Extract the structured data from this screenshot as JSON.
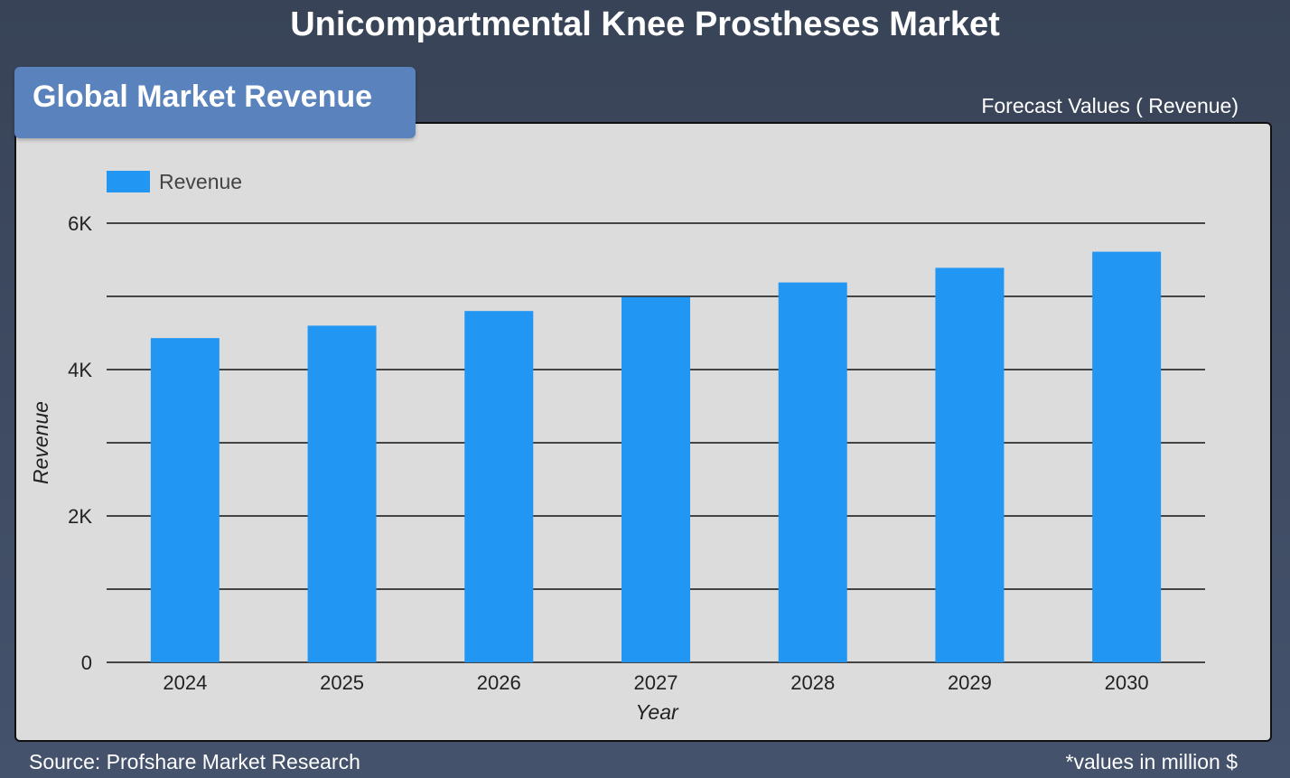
{
  "header": {
    "title": "Unicompartmental Knee Prostheses Market"
  },
  "badge": {
    "label": "Global Market Revenue"
  },
  "subtitle_right": "Forecast Values ( Revenue)",
  "footer": {
    "source": "Source: Profshare Market Research",
    "units_note": "*values in million $"
  },
  "colors": {
    "bar": "#2196f3",
    "panel": "#dcdcdc",
    "background": "#3d4a61",
    "badge": "#5a82bc"
  },
  "chart_data": {
    "type": "bar",
    "categories": [
      "2024",
      "2025",
      "2026",
      "2027",
      "2028",
      "2029",
      "2030"
    ],
    "series": [
      {
        "name": "Revenue",
        "values": [
          4430,
          4600,
          4800,
          4990,
          5190,
          5390,
          5610
        ]
      }
    ],
    "xlabel": "Year",
    "ylabel": "Revenue",
    "ylim": [
      0,
      6000
    ],
    "yticks": [
      0,
      2000,
      4000,
      6000
    ],
    "ytick_labels": [
      "0",
      "2K",
      "4K",
      "6K"
    ],
    "minor_gridlines": [
      1000,
      3000,
      5000
    ],
    "grid": true,
    "legend_position": "top-left"
  }
}
